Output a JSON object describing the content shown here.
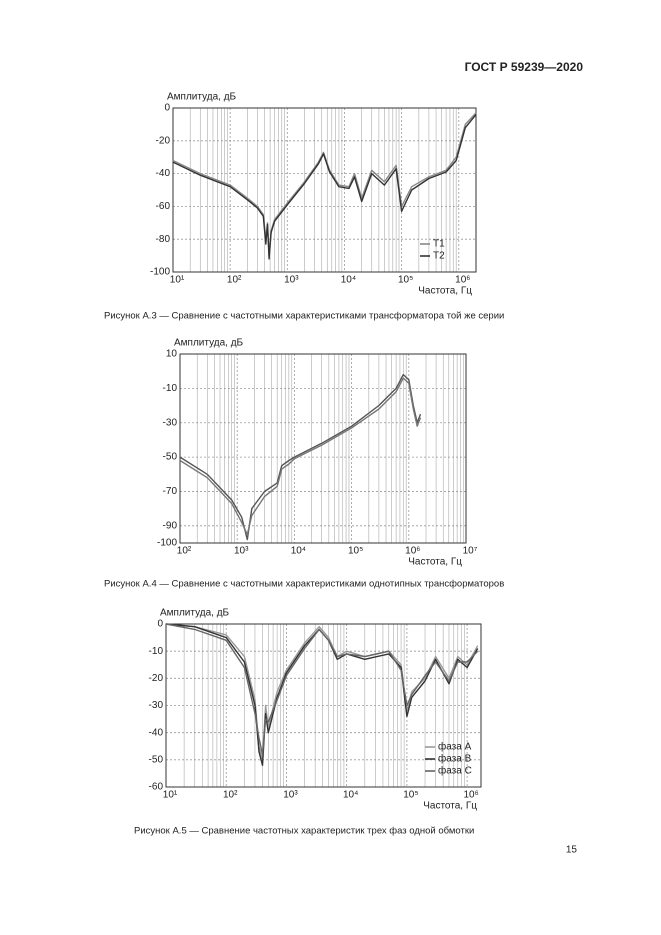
{
  "header": {
    "title": "ГОСТ Р 59239—2020"
  },
  "chart_data": [
    {
      "type": "line",
      "log_x": true,
      "grid": true,
      "minor_grid": true,
      "ylabel": "Амплитуда, дБ",
      "xlabel": "Частота, Гц",
      "xlim": [
        10,
        2000000
      ],
      "ylim": [
        -100,
        0
      ],
      "xticks": [
        {
          "value": 10,
          "label": "10¹"
        },
        {
          "value": 100,
          "label": "10²"
        },
        {
          "value": 1000,
          "label": "10³"
        },
        {
          "value": 10000,
          "label": "10⁴"
        },
        {
          "value": 100000,
          "label": "10⁵"
        },
        {
          "value": 1000000,
          "label": "10⁶"
        }
      ],
      "yticks": [
        0,
        -20,
        -40,
        -60,
        -80,
        -100
      ],
      "legend": "lower right",
      "x": [
        10,
        30,
        100,
        200,
        300,
        380,
        420,
        450,
        480,
        520,
        600,
        1000,
        2000,
        3500,
        4300,
        5500,
        8000,
        12000,
        15000,
        20000,
        30000,
        50000,
        80000,
        100000,
        150000,
        300000,
        600000,
        900000,
        1300000,
        2000000
      ],
      "series": [
        {
          "name": "T1",
          "color": "#888888",
          "values": [
            -32,
            -40,
            -47,
            -55,
            -60,
            -65,
            -80,
            -70,
            -90,
            -75,
            -68,
            -58,
            -45,
            -33,
            -27,
            -38,
            -47,
            -48,
            -40,
            -55,
            -38,
            -45,
            -35,
            -60,
            -48,
            -42,
            -38,
            -30,
            -10,
            -3
          ]
        },
        {
          "name": "T2",
          "color": "#333333",
          "values": [
            -33,
            -41,
            -48,
            -56,
            -61,
            -66,
            -83,
            -71,
            -92,
            -76,
            -69,
            -59,
            -46,
            -34,
            -28,
            -39,
            -48,
            -49,
            -42,
            -57,
            -40,
            -47,
            -37,
            -63,
            -50,
            -43,
            -39,
            -32,
            -12,
            -4
          ]
        }
      ]
    },
    {
      "type": "line",
      "log_x": true,
      "grid": true,
      "minor_grid": true,
      "ylabel": "Амплитуда, дБ",
      "xlabel": "Частота, Гц",
      "xlim": [
        100,
        10000000
      ],
      "ylim": [
        -100,
        10
      ],
      "xticks": [
        {
          "value": 100,
          "label": "10²"
        },
        {
          "value": 1000,
          "label": "10³"
        },
        {
          "value": 10000,
          "label": "10⁴"
        },
        {
          "value": 100000,
          "label": "10⁵"
        },
        {
          "value": 1000000,
          "label": "10⁶"
        },
        {
          "value": 10000000,
          "label": "10⁷"
        }
      ],
      "yticks": [
        10,
        -10,
        -30,
        -50,
        -70,
        -90,
        -100
      ],
      "x": [
        100,
        300,
        800,
        1200,
        1500,
        1800,
        3000,
        5000,
        6000,
        8000,
        10000,
        30000,
        100000,
        300000,
        600000,
        800000,
        1000000,
        1200000,
        1400000,
        1600000
      ],
      "series": [
        {
          "color": "#555555",
          "values": [
            -50,
            -60,
            -75,
            -85,
            -98,
            -80,
            -70,
            -65,
            -55,
            -52,
            -50,
            -42,
            -32,
            -20,
            -10,
            -2,
            -5,
            -20,
            -30,
            -25
          ]
        },
        {
          "color": "#777777",
          "values": [
            -52,
            -62,
            -77,
            -88,
            -95,
            -84,
            -73,
            -67,
            -57,
            -54,
            -51,
            -43,
            -33,
            -22,
            -12,
            -4,
            -7,
            -22,
            -32,
            -27
          ]
        }
      ]
    },
    {
      "type": "line",
      "log_x": true,
      "grid": true,
      "minor_grid": true,
      "ylabel": "Амплитуда, дБ",
      "xlabel": "Частота, Гц",
      "xlim": [
        10,
        1700000
      ],
      "ylim": [
        -60,
        0
      ],
      "xticks": [
        {
          "value": 10,
          "label": "10¹"
        },
        {
          "value": 100,
          "label": "10²"
        },
        {
          "value": 1000,
          "label": "10³"
        },
        {
          "value": 10000,
          "label": "10⁴"
        },
        {
          "value": 100000,
          "label": "10⁵"
        },
        {
          "value": 1000000,
          "label": "10⁶"
        }
      ],
      "yticks": [
        0,
        -10,
        -20,
        -30,
        -40,
        -50,
        -60
      ],
      "legend": "lower right",
      "x": [
        10,
        30,
        100,
        200,
        300,
        350,
        400,
        450,
        500,
        700,
        1000,
        2000,
        3500,
        5000,
        7000,
        10000,
        20000,
        50000,
        80000,
        100000,
        120000,
        200000,
        300000,
        500000,
        700000,
        1000000,
        1500000
      ],
      "series": [
        {
          "name": "фаза А",
          "color": "#999999",
          "values": [
            0,
            -1,
            -4,
            -12,
            -28,
            -45,
            -50,
            -30,
            -38,
            -25,
            -17,
            -7,
            -1,
            -5,
            -12,
            -10,
            -12,
            -10,
            -15,
            -32,
            -25,
            -20,
            -12,
            -20,
            -12,
            -15,
            -8
          ]
        },
        {
          "name": "фаза В",
          "color": "#333333",
          "values": [
            0,
            -1,
            -5,
            -14,
            -30,
            -47,
            -52,
            -33,
            -40,
            -27,
            -18,
            -8,
            -2,
            -6,
            -13,
            -11,
            -13,
            -11,
            -16,
            -34,
            -27,
            -21,
            -13,
            -22,
            -13,
            -16,
            -9
          ]
        },
        {
          "name": "фаза С",
          "color": "#666666",
          "values": [
            0,
            -2,
            -6,
            -16,
            -33,
            -42,
            -48,
            -35,
            -36,
            -28,
            -19,
            -9,
            -2,
            -6,
            -12,
            -11,
            -12,
            -10,
            -17,
            -30,
            -26,
            -19,
            -14,
            -21,
            -14,
            -14,
            -10
          ]
        }
      ]
    }
  ],
  "captions": [
    "Рисунок А.3 — Сравнение с частотными характеристиками трансформатора той же серии",
    "Рисунок А.4 — Сравнение с частотными характеристиками однотипных трансформаторов",
    "Рисунок А.5 — Сравнение частотных характеристик трех фаз одной обмотки"
  ],
  "page_number": "15"
}
